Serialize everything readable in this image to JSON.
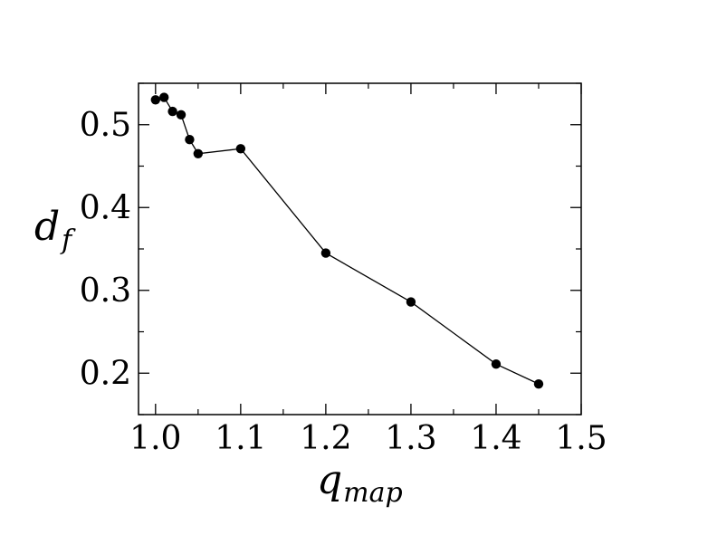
{
  "chart_data": {
    "type": "line",
    "xlabel": {
      "main": "q",
      "sub": "map"
    },
    "ylabel": {
      "main": "d",
      "sub": "f"
    },
    "xlim": [
      0.98,
      1.5
    ],
    "ylim": [
      0.15,
      0.55
    ],
    "x_ticks": [
      1.0,
      1.1,
      1.2,
      1.3,
      1.4,
      1.5
    ],
    "x_tick_labels": [
      "1.0",
      "1.1",
      "1.2",
      "1.3",
      "1.4",
      "1.5"
    ],
    "y_ticks": [
      0.2,
      0.3,
      0.4,
      0.5
    ],
    "y_tick_labels": [
      "0.2",
      "0.3",
      "0.4",
      "0.5"
    ],
    "grid": false,
    "legend": "none",
    "series": [
      {
        "x": [
          1.0,
          1.01,
          1.02,
          1.03,
          1.04,
          1.05,
          1.1,
          1.2,
          1.3,
          1.4,
          1.45
        ],
        "y": [
          0.53,
          0.533,
          0.516,
          0.512,
          0.482,
          0.465,
          0.471,
          0.345,
          0.286,
          0.211,
          0.187
        ],
        "color": "#000000",
        "marker": "circle"
      }
    ]
  }
}
